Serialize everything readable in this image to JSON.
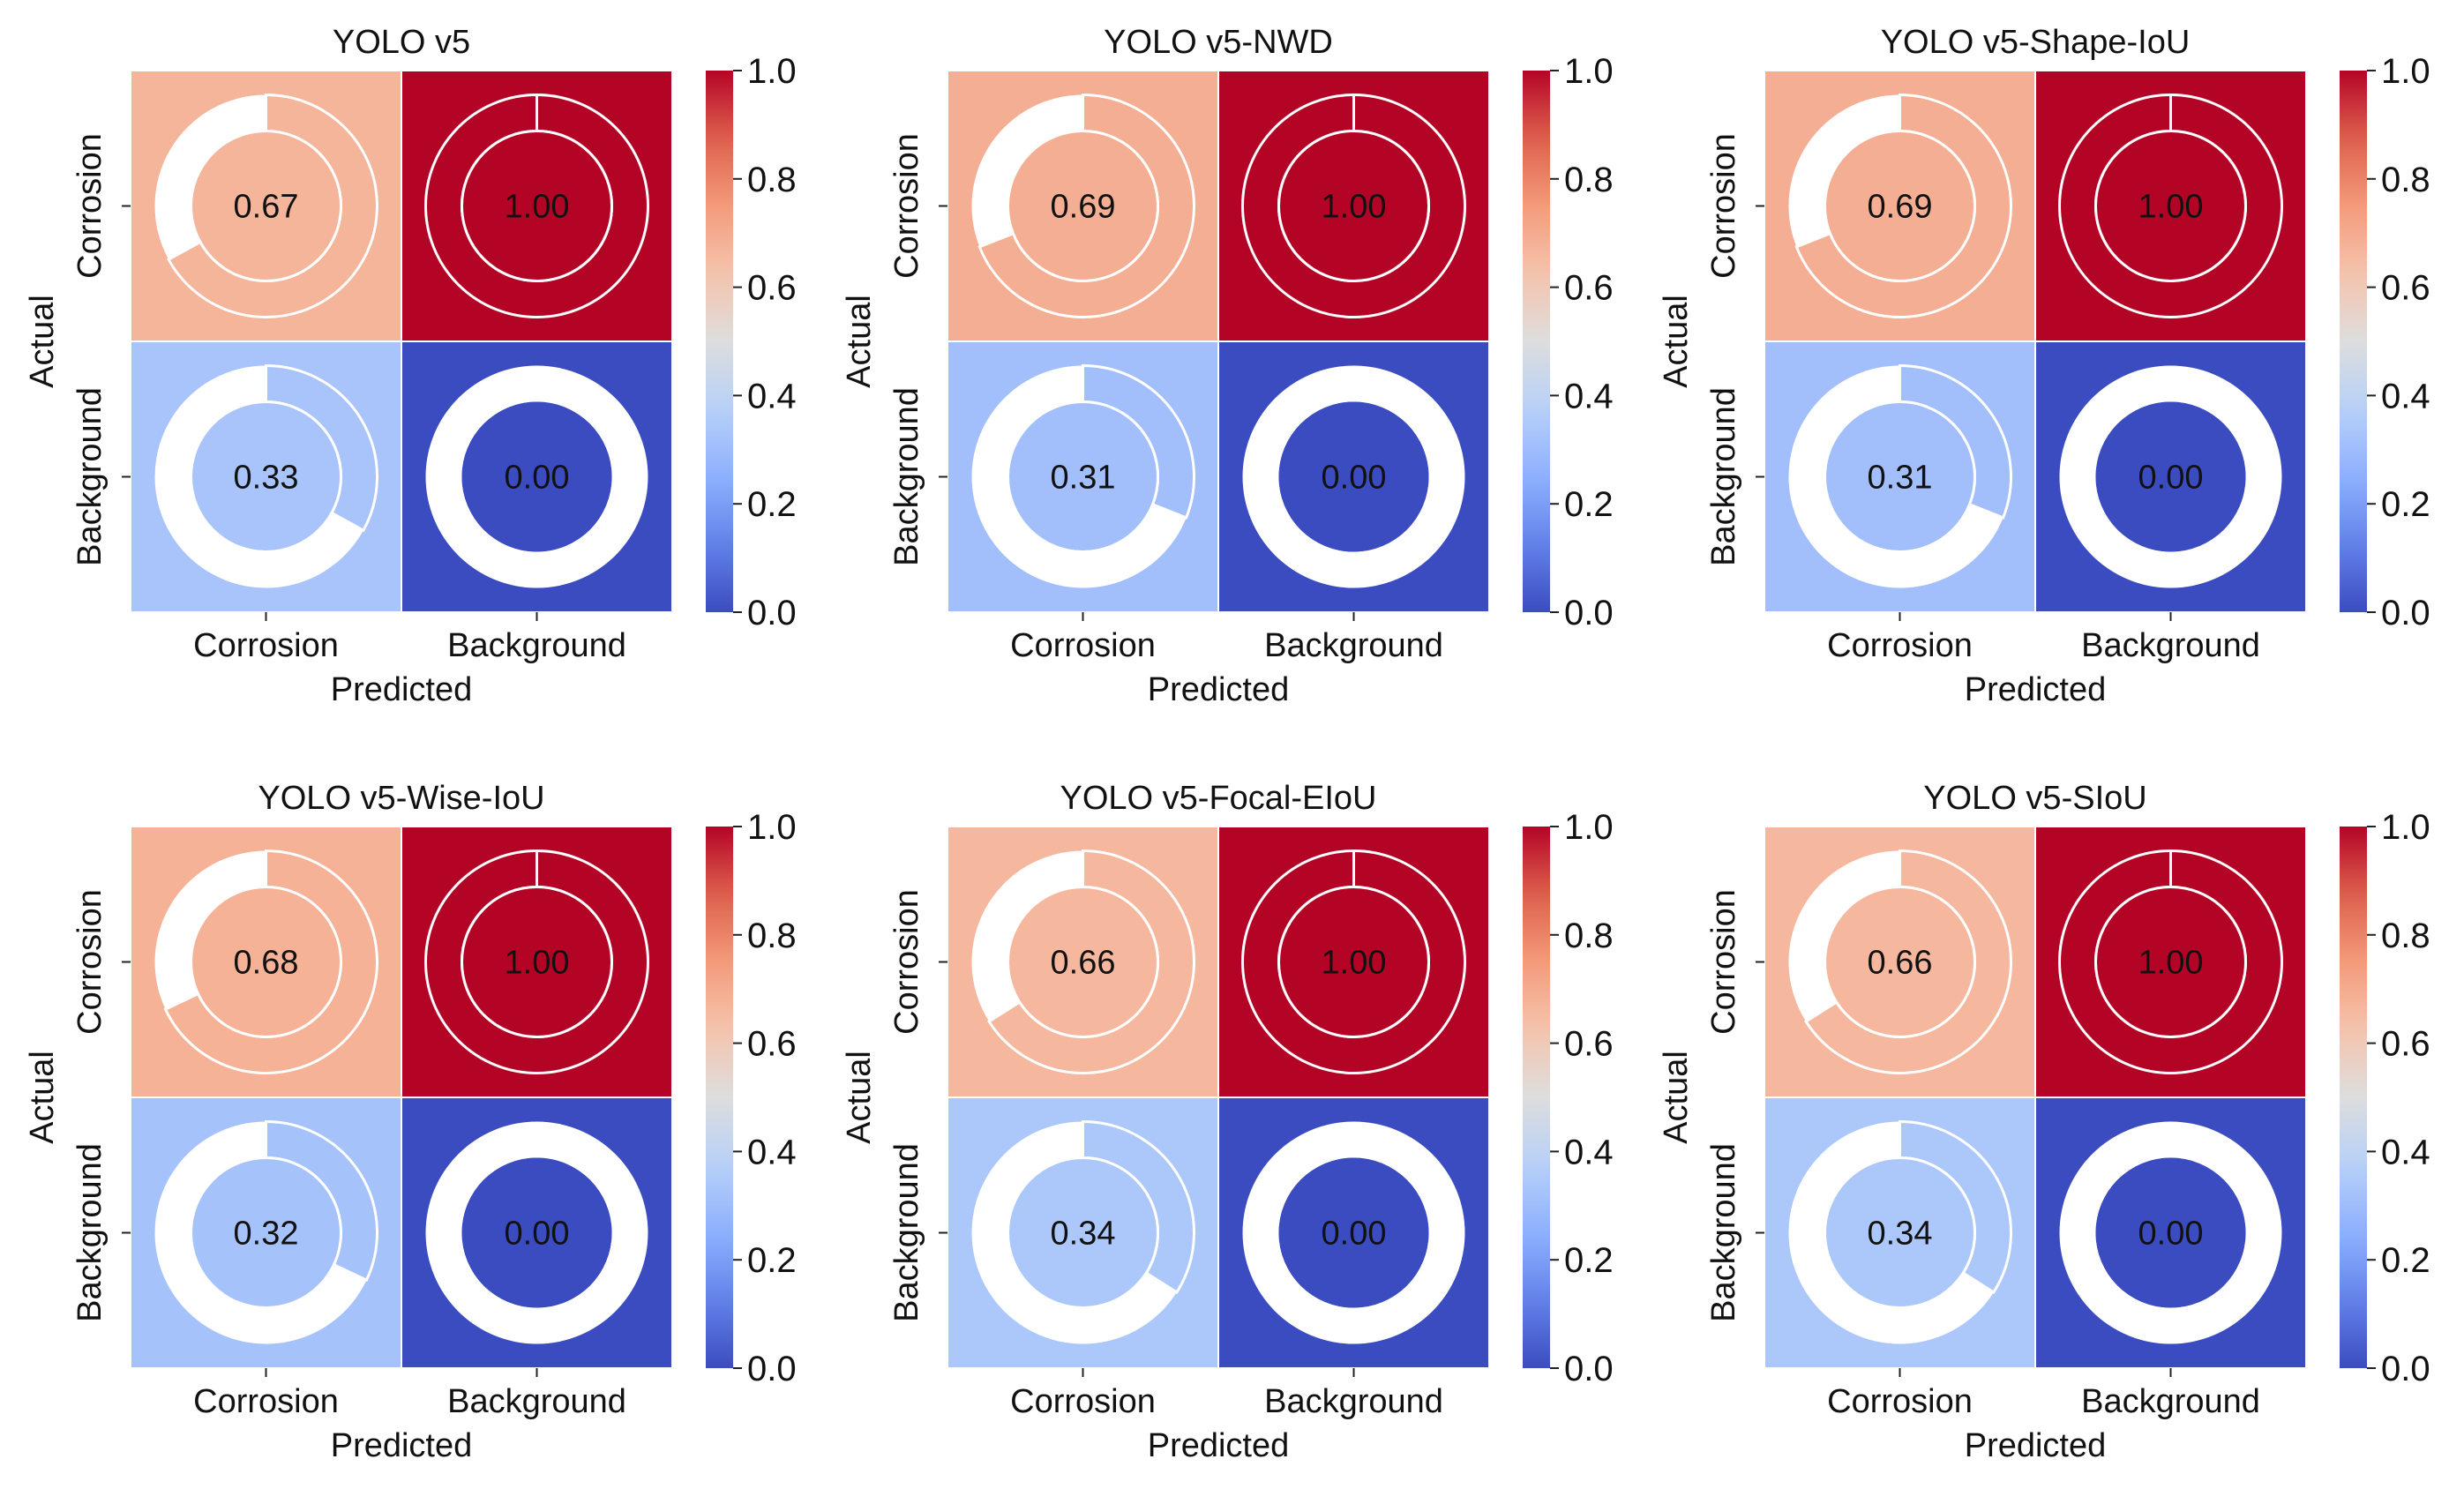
{
  "chart_data": [
    {
      "type": "heatmap",
      "title": "YOLO v5",
      "xlabel": "Predicted",
      "ylabel": "Actual",
      "x_categories": [
        "Corrosion",
        "Background"
      ],
      "y_categories": [
        "Corrosion",
        "Background"
      ],
      "values": [
        [
          0.67,
          1.0
        ],
        [
          0.33,
          0.0
        ]
      ],
      "labels": [
        [
          "0.67",
          "1.00"
        ],
        [
          "0.33",
          "0.00"
        ]
      ],
      "colorbar": {
        "range": [
          0,
          1
        ],
        "ticks": [
          "0.0",
          "0.2",
          "0.4",
          "0.6",
          "0.8",
          "1.0"
        ]
      }
    },
    {
      "type": "heatmap",
      "title": "YOLO v5-NWD",
      "xlabel": "Predicted",
      "ylabel": "Actual",
      "x_categories": [
        "Corrosion",
        "Background"
      ],
      "y_categories": [
        "Corrosion",
        "Background"
      ],
      "values": [
        [
          0.69,
          1.0
        ],
        [
          0.31,
          0.0
        ]
      ],
      "labels": [
        [
          "0.69",
          "1.00"
        ],
        [
          "0.31",
          "0.00"
        ]
      ],
      "colorbar": {
        "range": [
          0,
          1
        ],
        "ticks": [
          "0.0",
          "0.2",
          "0.4",
          "0.6",
          "0.8",
          "1.0"
        ]
      }
    },
    {
      "type": "heatmap",
      "title": "YOLO v5-Shape-IoU",
      "xlabel": "Predicted",
      "ylabel": "Actual",
      "x_categories": [
        "Corrosion",
        "Background"
      ],
      "y_categories": [
        "Corrosion",
        "Background"
      ],
      "values": [
        [
          0.69,
          1.0
        ],
        [
          0.31,
          0.0
        ]
      ],
      "labels": [
        [
          "0.69",
          "1.00"
        ],
        [
          "0.31",
          "0.00"
        ]
      ],
      "colorbar": {
        "range": [
          0,
          1
        ],
        "ticks": [
          "0.0",
          "0.2",
          "0.4",
          "0.6",
          "0.8",
          "1.0"
        ]
      }
    },
    {
      "type": "heatmap",
      "title": "YOLO v5-Wise-IoU",
      "xlabel": "Predicted",
      "ylabel": "Actual",
      "x_categories": [
        "Corrosion",
        "Background"
      ],
      "y_categories": [
        "Corrosion",
        "Background"
      ],
      "values": [
        [
          0.68,
          1.0
        ],
        [
          0.32,
          0.0
        ]
      ],
      "labels": [
        [
          "0.68",
          "1.00"
        ],
        [
          "0.32",
          "0.00"
        ]
      ],
      "colorbar": {
        "range": [
          0,
          1
        ],
        "ticks": [
          "0.0",
          "0.2",
          "0.4",
          "0.6",
          "0.8",
          "1.0"
        ]
      }
    },
    {
      "type": "heatmap",
      "title": "YOLO v5-Focal-EIoU",
      "xlabel": "Predicted",
      "ylabel": "Actual",
      "x_categories": [
        "Corrosion",
        "Background"
      ],
      "y_categories": [
        "Corrosion",
        "Background"
      ],
      "values": [
        [
          0.66,
          1.0
        ],
        [
          0.34,
          0.0
        ]
      ],
      "labels": [
        [
          "0.66",
          "1.00"
        ],
        [
          "0.34",
          "0.00"
        ]
      ],
      "colorbar": {
        "range": [
          0,
          1
        ],
        "ticks": [
          "0.0",
          "0.2",
          "0.4",
          "0.6",
          "0.8",
          "1.0"
        ]
      }
    },
    {
      "type": "heatmap",
      "title": "YOLO v5-SIoU",
      "xlabel": "Predicted",
      "ylabel": "Actual",
      "x_categories": [
        "Corrosion",
        "Background"
      ],
      "y_categories": [
        "Corrosion",
        "Background"
      ],
      "values": [
        [
          0.66,
          1.0
        ],
        [
          0.34,
          0.0
        ]
      ],
      "labels": [
        [
          "0.66",
          "1.00"
        ],
        [
          "0.34",
          "0.00"
        ]
      ],
      "colorbar": {
        "range": [
          0,
          1
        ],
        "ticks": [
          "0.0",
          "0.2",
          "0.4",
          "0.6",
          "0.8",
          "1.0"
        ]
      }
    }
  ],
  "colormap": [
    "#3b4cc0",
    "#6282ea",
    "#8db0fe",
    "#b8d0f9",
    "#dddddd",
    "#f5c4ad",
    "#f49a7b",
    "#de604d",
    "#b40426"
  ]
}
